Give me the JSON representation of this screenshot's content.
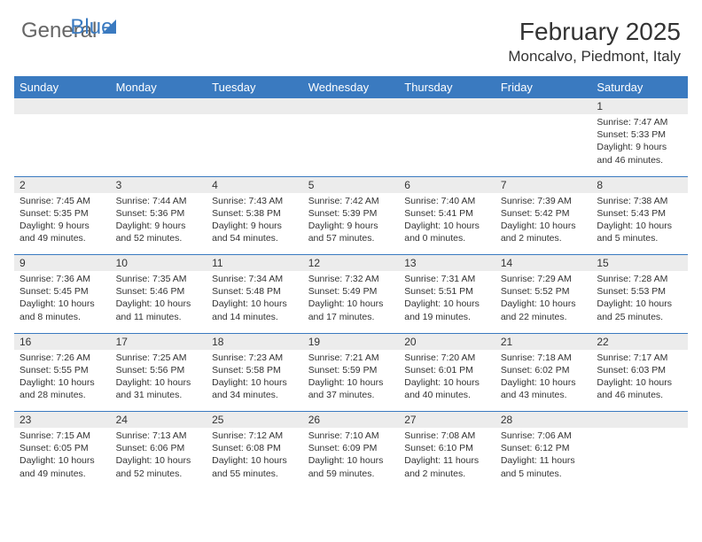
{
  "logo": {
    "general": "General",
    "blue": "Blue"
  },
  "title": "February 2025",
  "location": "Moncalvo, Piedmont, Italy",
  "colors": {
    "header_bg": "#3a7ac0",
    "header_text": "#ffffff",
    "daynum_bg": "#ececec",
    "border": "#3a7ac0",
    "text": "#333333",
    "page_bg": "#ffffff"
  },
  "typography": {
    "title_fontsize": 28,
    "location_fontsize": 17,
    "dayhead_fontsize": 13,
    "daynum_fontsize": 12,
    "detail_fontsize": 10.5
  },
  "day_headers": [
    "Sunday",
    "Monday",
    "Tuesday",
    "Wednesday",
    "Thursday",
    "Friday",
    "Saturday"
  ],
  "weeks": [
    [
      {
        "num": "",
        "sunrise": "",
        "sunset": "",
        "daylight": ""
      },
      {
        "num": "",
        "sunrise": "",
        "sunset": "",
        "daylight": ""
      },
      {
        "num": "",
        "sunrise": "",
        "sunset": "",
        "daylight": ""
      },
      {
        "num": "",
        "sunrise": "",
        "sunset": "",
        "daylight": ""
      },
      {
        "num": "",
        "sunrise": "",
        "sunset": "",
        "daylight": ""
      },
      {
        "num": "",
        "sunrise": "",
        "sunset": "",
        "daylight": ""
      },
      {
        "num": "1",
        "sunrise": "Sunrise: 7:47 AM",
        "sunset": "Sunset: 5:33 PM",
        "daylight": "Daylight: 9 hours and 46 minutes."
      }
    ],
    [
      {
        "num": "2",
        "sunrise": "Sunrise: 7:45 AM",
        "sunset": "Sunset: 5:35 PM",
        "daylight": "Daylight: 9 hours and 49 minutes."
      },
      {
        "num": "3",
        "sunrise": "Sunrise: 7:44 AM",
        "sunset": "Sunset: 5:36 PM",
        "daylight": "Daylight: 9 hours and 52 minutes."
      },
      {
        "num": "4",
        "sunrise": "Sunrise: 7:43 AM",
        "sunset": "Sunset: 5:38 PM",
        "daylight": "Daylight: 9 hours and 54 minutes."
      },
      {
        "num": "5",
        "sunrise": "Sunrise: 7:42 AM",
        "sunset": "Sunset: 5:39 PM",
        "daylight": "Daylight: 9 hours and 57 minutes."
      },
      {
        "num": "6",
        "sunrise": "Sunrise: 7:40 AM",
        "sunset": "Sunset: 5:41 PM",
        "daylight": "Daylight: 10 hours and 0 minutes."
      },
      {
        "num": "7",
        "sunrise": "Sunrise: 7:39 AM",
        "sunset": "Sunset: 5:42 PM",
        "daylight": "Daylight: 10 hours and 2 minutes."
      },
      {
        "num": "8",
        "sunrise": "Sunrise: 7:38 AM",
        "sunset": "Sunset: 5:43 PM",
        "daylight": "Daylight: 10 hours and 5 minutes."
      }
    ],
    [
      {
        "num": "9",
        "sunrise": "Sunrise: 7:36 AM",
        "sunset": "Sunset: 5:45 PM",
        "daylight": "Daylight: 10 hours and 8 minutes."
      },
      {
        "num": "10",
        "sunrise": "Sunrise: 7:35 AM",
        "sunset": "Sunset: 5:46 PM",
        "daylight": "Daylight: 10 hours and 11 minutes."
      },
      {
        "num": "11",
        "sunrise": "Sunrise: 7:34 AM",
        "sunset": "Sunset: 5:48 PM",
        "daylight": "Daylight: 10 hours and 14 minutes."
      },
      {
        "num": "12",
        "sunrise": "Sunrise: 7:32 AM",
        "sunset": "Sunset: 5:49 PM",
        "daylight": "Daylight: 10 hours and 17 minutes."
      },
      {
        "num": "13",
        "sunrise": "Sunrise: 7:31 AM",
        "sunset": "Sunset: 5:51 PM",
        "daylight": "Daylight: 10 hours and 19 minutes."
      },
      {
        "num": "14",
        "sunrise": "Sunrise: 7:29 AM",
        "sunset": "Sunset: 5:52 PM",
        "daylight": "Daylight: 10 hours and 22 minutes."
      },
      {
        "num": "15",
        "sunrise": "Sunrise: 7:28 AM",
        "sunset": "Sunset: 5:53 PM",
        "daylight": "Daylight: 10 hours and 25 minutes."
      }
    ],
    [
      {
        "num": "16",
        "sunrise": "Sunrise: 7:26 AM",
        "sunset": "Sunset: 5:55 PM",
        "daylight": "Daylight: 10 hours and 28 minutes."
      },
      {
        "num": "17",
        "sunrise": "Sunrise: 7:25 AM",
        "sunset": "Sunset: 5:56 PM",
        "daylight": "Daylight: 10 hours and 31 minutes."
      },
      {
        "num": "18",
        "sunrise": "Sunrise: 7:23 AM",
        "sunset": "Sunset: 5:58 PM",
        "daylight": "Daylight: 10 hours and 34 minutes."
      },
      {
        "num": "19",
        "sunrise": "Sunrise: 7:21 AM",
        "sunset": "Sunset: 5:59 PM",
        "daylight": "Daylight: 10 hours and 37 minutes."
      },
      {
        "num": "20",
        "sunrise": "Sunrise: 7:20 AM",
        "sunset": "Sunset: 6:01 PM",
        "daylight": "Daylight: 10 hours and 40 minutes."
      },
      {
        "num": "21",
        "sunrise": "Sunrise: 7:18 AM",
        "sunset": "Sunset: 6:02 PM",
        "daylight": "Daylight: 10 hours and 43 minutes."
      },
      {
        "num": "22",
        "sunrise": "Sunrise: 7:17 AM",
        "sunset": "Sunset: 6:03 PM",
        "daylight": "Daylight: 10 hours and 46 minutes."
      }
    ],
    [
      {
        "num": "23",
        "sunrise": "Sunrise: 7:15 AM",
        "sunset": "Sunset: 6:05 PM",
        "daylight": "Daylight: 10 hours and 49 minutes."
      },
      {
        "num": "24",
        "sunrise": "Sunrise: 7:13 AM",
        "sunset": "Sunset: 6:06 PM",
        "daylight": "Daylight: 10 hours and 52 minutes."
      },
      {
        "num": "25",
        "sunrise": "Sunrise: 7:12 AM",
        "sunset": "Sunset: 6:08 PM",
        "daylight": "Daylight: 10 hours and 55 minutes."
      },
      {
        "num": "26",
        "sunrise": "Sunrise: 7:10 AM",
        "sunset": "Sunset: 6:09 PM",
        "daylight": "Daylight: 10 hours and 59 minutes."
      },
      {
        "num": "27",
        "sunrise": "Sunrise: 7:08 AM",
        "sunset": "Sunset: 6:10 PM",
        "daylight": "Daylight: 11 hours and 2 minutes."
      },
      {
        "num": "28",
        "sunrise": "Sunrise: 7:06 AM",
        "sunset": "Sunset: 6:12 PM",
        "daylight": "Daylight: 11 hours and 5 minutes."
      },
      {
        "num": "",
        "sunrise": "",
        "sunset": "",
        "daylight": ""
      }
    ]
  ]
}
